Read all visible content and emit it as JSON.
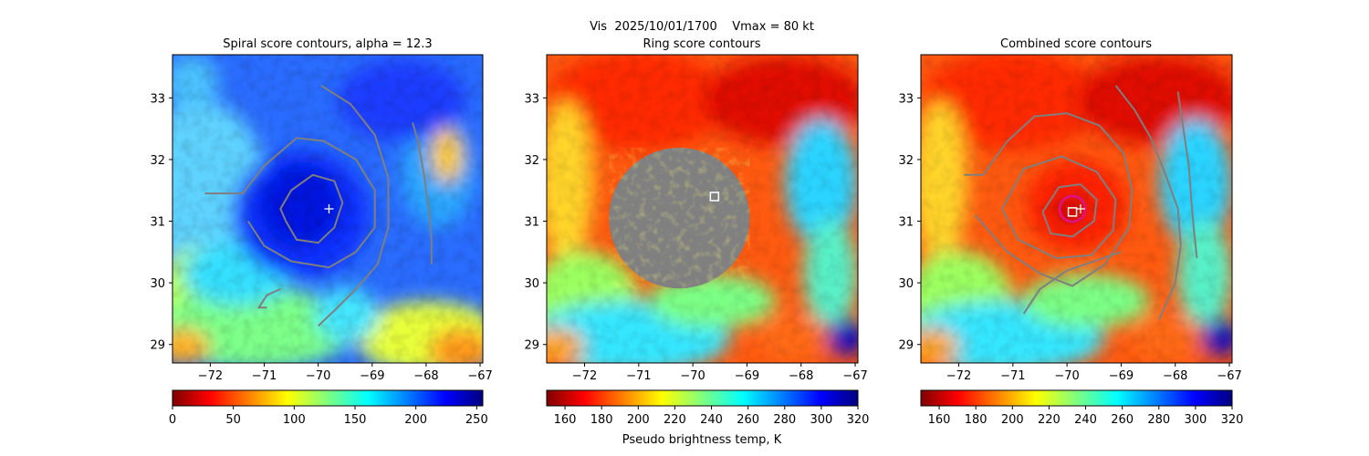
{
  "figure": {
    "suptitle": "Vis  2025/10/01/1700    Vmax = 80 kt"
  },
  "chart_data": [
    {
      "type": "heatmap",
      "title": "Spiral score contours, alpha = 12.3",
      "xlim": [
        -72.7,
        -66.95
      ],
      "ylim": [
        28.7,
        33.7
      ],
      "xticks": [
        -72,
        -71,
        -70,
        -69,
        -68,
        -67
      ],
      "yticks": [
        29,
        30,
        31,
        32,
        33
      ],
      "colormap": "jet_r",
      "colorbar": {
        "range": [
          0,
          255
        ],
        "ticks": [
          0,
          50,
          100,
          150,
          200,
          250
        ],
        "label": ""
      },
      "contours": [
        {
          "id": "inner",
          "points": [
            [
              -70.6,
              31.0
            ],
            [
              -70.4,
              30.7
            ],
            [
              -70.0,
              30.65
            ],
            [
              -69.7,
              30.9
            ],
            [
              -69.55,
              31.3
            ],
            [
              -69.7,
              31.65
            ],
            [
              -70.1,
              31.75
            ],
            [
              -70.5,
              31.5
            ],
            [
              -70.7,
              31.2
            ],
            [
              -70.6,
              31.0
            ]
          ]
        },
        {
          "id": "outer",
          "points": [
            [
              -72.1,
              31.45
            ],
            [
              -71.4,
              31.45
            ],
            [
              -71.0,
              31.9
            ],
            [
              -70.4,
              32.35
            ],
            [
              -69.9,
              32.3
            ],
            [
              -69.3,
              32.0
            ],
            [
              -68.95,
              31.5
            ],
            [
              -68.95,
              30.9
            ],
            [
              -69.3,
              30.5
            ],
            [
              -69.8,
              30.25
            ],
            [
              -70.5,
              30.35
            ],
            [
              -71.0,
              30.6
            ],
            [
              -71.3,
              31.0
            ]
          ]
        },
        {
          "id": "spiral",
          "points": [
            [
              -69.95,
              33.2
            ],
            [
              -69.4,
              32.9
            ],
            [
              -68.95,
              32.4
            ],
            [
              -68.7,
              31.7
            ],
            [
              -68.7,
              30.9
            ],
            [
              -68.9,
              30.3
            ],
            [
              -69.3,
              29.9
            ],
            [
              -69.7,
              29.55
            ],
            [
              -70.0,
              29.3
            ]
          ]
        },
        {
          "id": "outer-band",
          "points": [
            [
              -68.25,
              32.6
            ],
            [
              -68.15,
              32.3
            ],
            [
              -68.05,
              31.8
            ],
            [
              -67.95,
              31.2
            ],
            [
              -67.9,
              30.7
            ],
            [
              -67.9,
              30.3
            ]
          ]
        },
        {
          "id": "hook",
          "points": [
            [
              -70.7,
              29.9
            ],
            [
              -70.95,
              29.8
            ],
            [
              -71.1,
              29.6
            ],
            [
              -70.95,
              29.6
            ]
          ]
        }
      ],
      "markers": [
        {
          "type": "plus",
          "x": -69.8,
          "y": 31.2,
          "color": "#ffffff"
        }
      ]
    },
    {
      "type": "heatmap",
      "title": "Ring score contours",
      "xlim": [
        -72.7,
        -66.95
      ],
      "ylim": [
        28.7,
        33.7
      ],
      "xticks": [
        -72,
        -71,
        -70,
        -69,
        -68,
        -67
      ],
      "yticks": [
        29,
        30,
        31,
        32,
        33
      ],
      "colormap": "jet_r",
      "colorbar": {
        "range": [
          150,
          320
        ],
        "ticks": [
          160,
          180,
          200,
          220,
          240,
          260,
          280,
          300,
          320
        ],
        "label": "Pseudo brightness temp, K"
      },
      "ring_region": {
        "center": [
          -70.25,
          31.05
        ],
        "radius_deg": 1.3
      },
      "markers": [
        {
          "type": "square",
          "x": -69.6,
          "y": 31.4,
          "color": "#ffffff"
        }
      ]
    },
    {
      "type": "heatmap",
      "title": "Combined score contours",
      "xlim": [
        -72.7,
        -66.95
      ],
      "ylim": [
        28.7,
        33.7
      ],
      "xticks": [
        -72,
        -71,
        -70,
        -69,
        -68,
        -67
      ],
      "yticks": [
        29,
        30,
        31,
        32,
        33
      ],
      "colormap": "jet_r",
      "colorbar": {
        "range": [
          150,
          320
        ],
        "ticks": [
          160,
          180,
          200,
          220,
          240,
          260,
          280,
          300,
          320
        ],
        "label": ""
      },
      "contours": [
        {
          "id": "inner",
          "points": [
            [
              -70.45,
              31.15
            ],
            [
              -70.3,
              30.8
            ],
            [
              -69.9,
              30.75
            ],
            [
              -69.5,
              31.0
            ],
            [
              -69.45,
              31.35
            ],
            [
              -69.75,
              31.6
            ],
            [
              -70.15,
              31.55
            ],
            [
              -70.45,
              31.15
            ]
          ]
        },
        {
          "id": "middle",
          "points": [
            [
              -71.2,
              31.2
            ],
            [
              -70.8,
              31.85
            ],
            [
              -70.1,
              32.05
            ],
            [
              -69.45,
              31.8
            ],
            [
              -69.1,
              31.35
            ],
            [
              -69.15,
              30.85
            ],
            [
              -69.55,
              30.45
            ],
            [
              -70.2,
              30.4
            ],
            [
              -70.9,
              30.7
            ],
            [
              -71.2,
              31.2
            ]
          ]
        },
        {
          "id": "outer",
          "points": [
            [
              -71.9,
              31.75
            ],
            [
              -71.55,
              31.75
            ],
            [
              -71.1,
              32.3
            ],
            [
              -70.6,
              32.7
            ],
            [
              -70.0,
              32.75
            ],
            [
              -69.4,
              32.55
            ],
            [
              -68.95,
              32.1
            ],
            [
              -68.8,
              31.5
            ],
            [
              -68.85,
              30.9
            ],
            [
              -69.3,
              30.3
            ],
            [
              -69.9,
              29.95
            ],
            [
              -70.5,
              30.15
            ],
            [
              -71.1,
              30.5
            ],
            [
              -71.5,
              30.9
            ],
            [
              -71.7,
              31.1
            ]
          ]
        },
        {
          "id": "spiral",
          "points": [
            [
              -69.1,
              33.2
            ],
            [
              -68.75,
              32.8
            ],
            [
              -68.45,
              32.35
            ],
            [
              -68.2,
              31.8
            ],
            [
              -67.95,
              31.2
            ],
            [
              -67.9,
              30.6
            ],
            [
              -68.0,
              30.0
            ],
            [
              -68.15,
              29.7
            ],
            [
              -68.3,
              29.4
            ]
          ]
        },
        {
          "id": "lower-arc",
          "points": [
            [
              -70.8,
              29.5
            ],
            [
              -70.5,
              29.9
            ],
            [
              -70.0,
              30.2
            ],
            [
              -69.5,
              30.35
            ],
            [
              -69.0,
              30.5
            ]
          ]
        },
        {
          "id": "right-band",
          "points": [
            [
              -67.95,
              33.1
            ],
            [
              -67.85,
              32.5
            ],
            [
              -67.75,
              31.9
            ],
            [
              -67.7,
              31.3
            ],
            [
              -67.65,
              30.8
            ],
            [
              -67.6,
              30.4
            ]
          ]
        }
      ],
      "markers": [
        {
          "type": "circle",
          "x": -69.9,
          "y": 31.2,
          "color": "#e0108f"
        },
        {
          "type": "square",
          "x": -69.9,
          "y": 31.15,
          "color": "#ffffff"
        },
        {
          "type": "plus",
          "x": -69.75,
          "y": 31.2,
          "color": "#ffffff"
        }
      ]
    }
  ]
}
